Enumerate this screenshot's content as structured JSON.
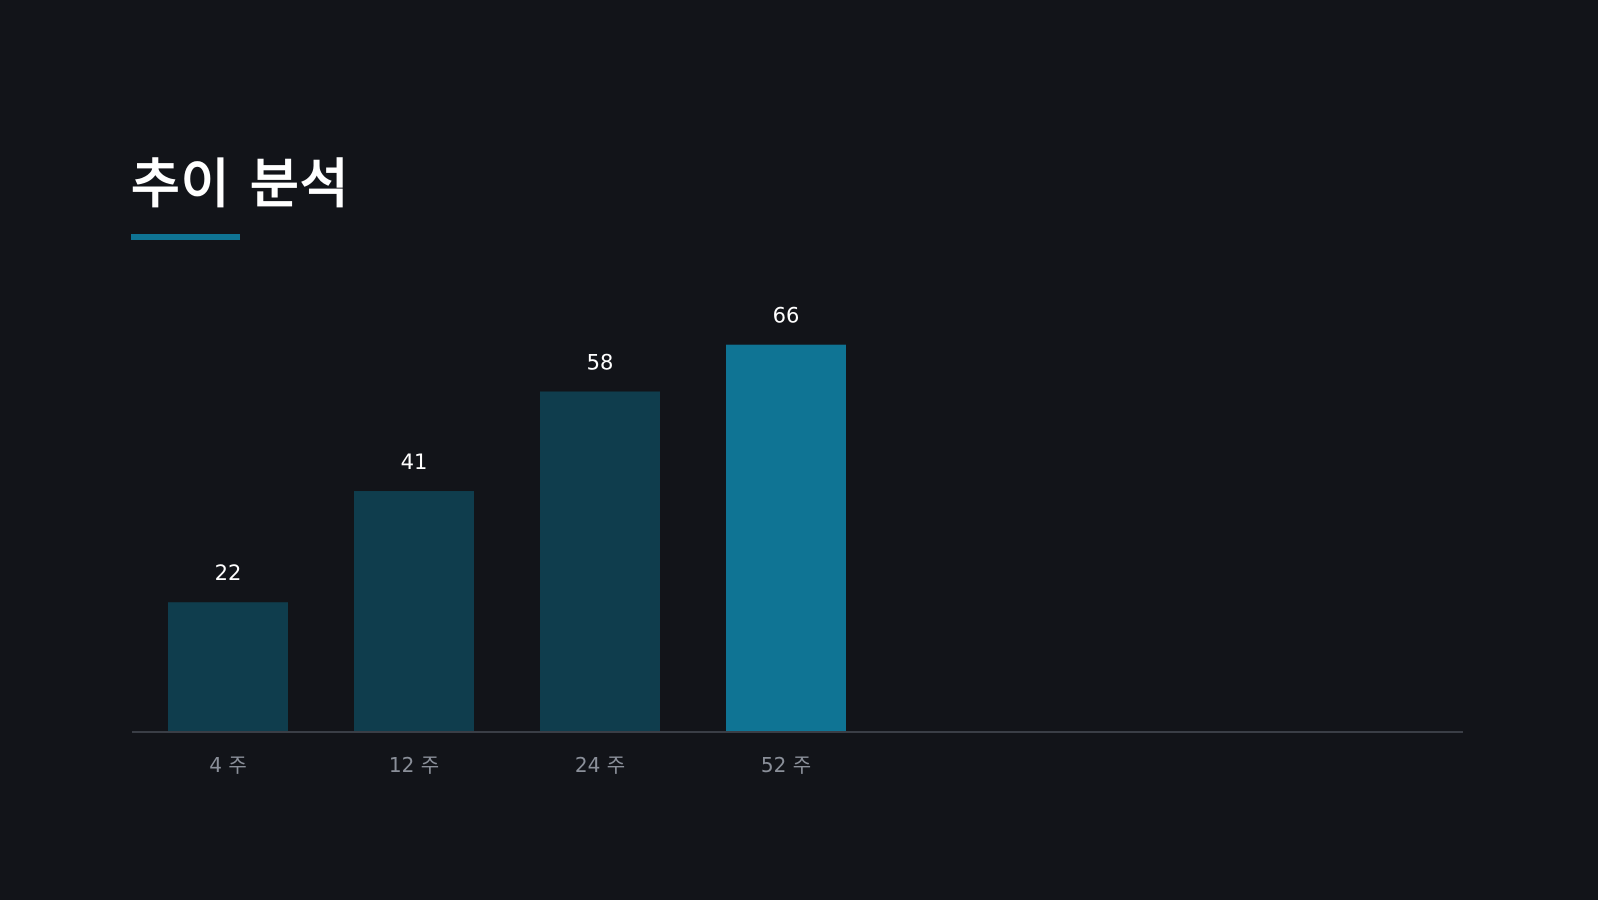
{
  "title": "추이 분석",
  "colors": {
    "background": "#121419",
    "bar": "#0f3d4d",
    "bar_highlight": "#0f7494",
    "accent": "#0f7494",
    "axis": "#3a3e46",
    "tick_text": "#8a8f99",
    "value_text": "#ffffff"
  },
  "chart_data": {
    "type": "bar",
    "categories": [
      "4 주",
      "12 주",
      "24 주",
      "52 주"
    ],
    "values": [
      22,
      41,
      58,
      66
    ],
    "data_labels": [
      "22",
      "41",
      "58",
      "66"
    ],
    "highlight_index": 3,
    "ylim": [
      0,
      100
    ],
    "grid": false,
    "legend": "none"
  }
}
